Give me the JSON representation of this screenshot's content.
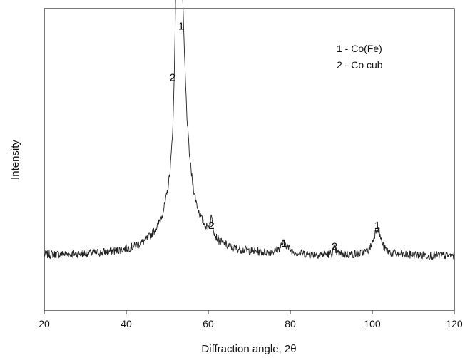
{
  "chart_data": {
    "type": "line",
    "title": "",
    "xlabel": "Diffraction angle, 2θ",
    "ylabel": "Intensity",
    "xlim": [
      20,
      120
    ],
    "ylim": [
      0,
      100
    ],
    "x_ticks": [
      "20",
      "40",
      "60",
      "80",
      "100",
      "120"
    ],
    "y_ticks_shown": false,
    "grid": false,
    "line_color": "#222222",
    "baseline": 18,
    "noise_amplitude": 1.4,
    "peaks": [
      {
        "center": 52.3,
        "height": 54,
        "width": 0.5
      },
      {
        "center": 53.4,
        "height": 66,
        "width": 1.2
      },
      {
        "center": 53.4,
        "height": 18,
        "width": 4.5
      },
      {
        "center": 60.8,
        "height": 6,
        "width": 0.5
      },
      {
        "center": 78.5,
        "height": 3.5,
        "width": 1.2
      },
      {
        "center": 90.8,
        "height": 2,
        "width": 0.4
      },
      {
        "center": 101.2,
        "height": 9,
        "width": 1.1
      }
    ],
    "peak_labels": [
      {
        "text": "1",
        "x": 53.4,
        "y": 93
      },
      {
        "text": "2",
        "x": 51.3,
        "y": 76
      },
      {
        "text": "2",
        "x": 60.8,
        "y": 27
      },
      {
        "text": "1",
        "x": 78.5,
        "y": 21
      },
      {
        "text": "2",
        "x": 90.8,
        "y": 20
      },
      {
        "text": "1",
        "x": 101.2,
        "y": 27
      }
    ],
    "legend": {
      "position": "top-right",
      "entries": [
        "1 - Co(Fe)",
        "2 - Co cub"
      ]
    }
  }
}
